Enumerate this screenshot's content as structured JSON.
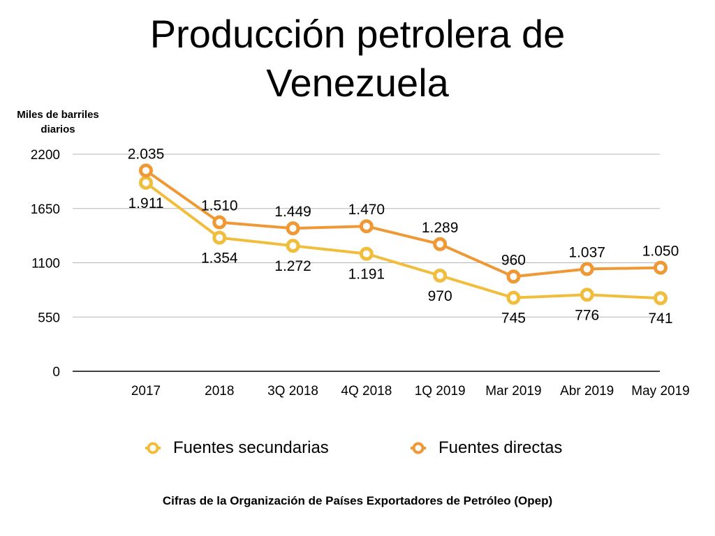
{
  "chart_data": {
    "type": "line",
    "title": "Producción petrolera de Venezuela",
    "title_lines": [
      "Producción petrolera de",
      "Venezuela"
    ],
    "ylabel": "Miles de barriles diarios",
    "ylabel_lines": [
      "Miles de barriles",
      "diarios"
    ],
    "xlabel": "",
    "ylim": [
      0,
      2200
    ],
    "yticks": [
      0,
      550,
      1100,
      1650,
      2200
    ],
    "ytick_labels": [
      "0",
      "550",
      "1100",
      "1650",
      "2200"
    ],
    "grid": true,
    "categories": [
      "2017",
      "2018",
      "3Q 2018",
      "4Q 2018",
      "1Q 2019",
      "Mar 2019",
      "Abr 2019",
      "May 2019"
    ],
    "series": [
      {
        "name": "Fuentes secundarias",
        "color": "#F0BE3C",
        "values": [
          1911,
          1354,
          1272,
          1191,
          970,
          745,
          776,
          741
        ],
        "labels": [
          "1.911",
          "1.354",
          "1.272",
          "1.191",
          "970",
          "745",
          "776",
          "741"
        ],
        "label_position": "below"
      },
      {
        "name": "Fuentes directas",
        "color": "#EE9935",
        "values": [
          2035,
          1510,
          1449,
          1470,
          1289,
          960,
          1037,
          1050
        ],
        "labels": [
          "2.035",
          "1.510",
          "1.449",
          "1.470",
          "1.289",
          "960",
          "1.037",
          "1.050"
        ],
        "label_position": "above"
      }
    ],
    "legend_position": "bottom"
  },
  "source": "Cifras de la Organización de Países Exportadores de Petróleo (Opep)"
}
